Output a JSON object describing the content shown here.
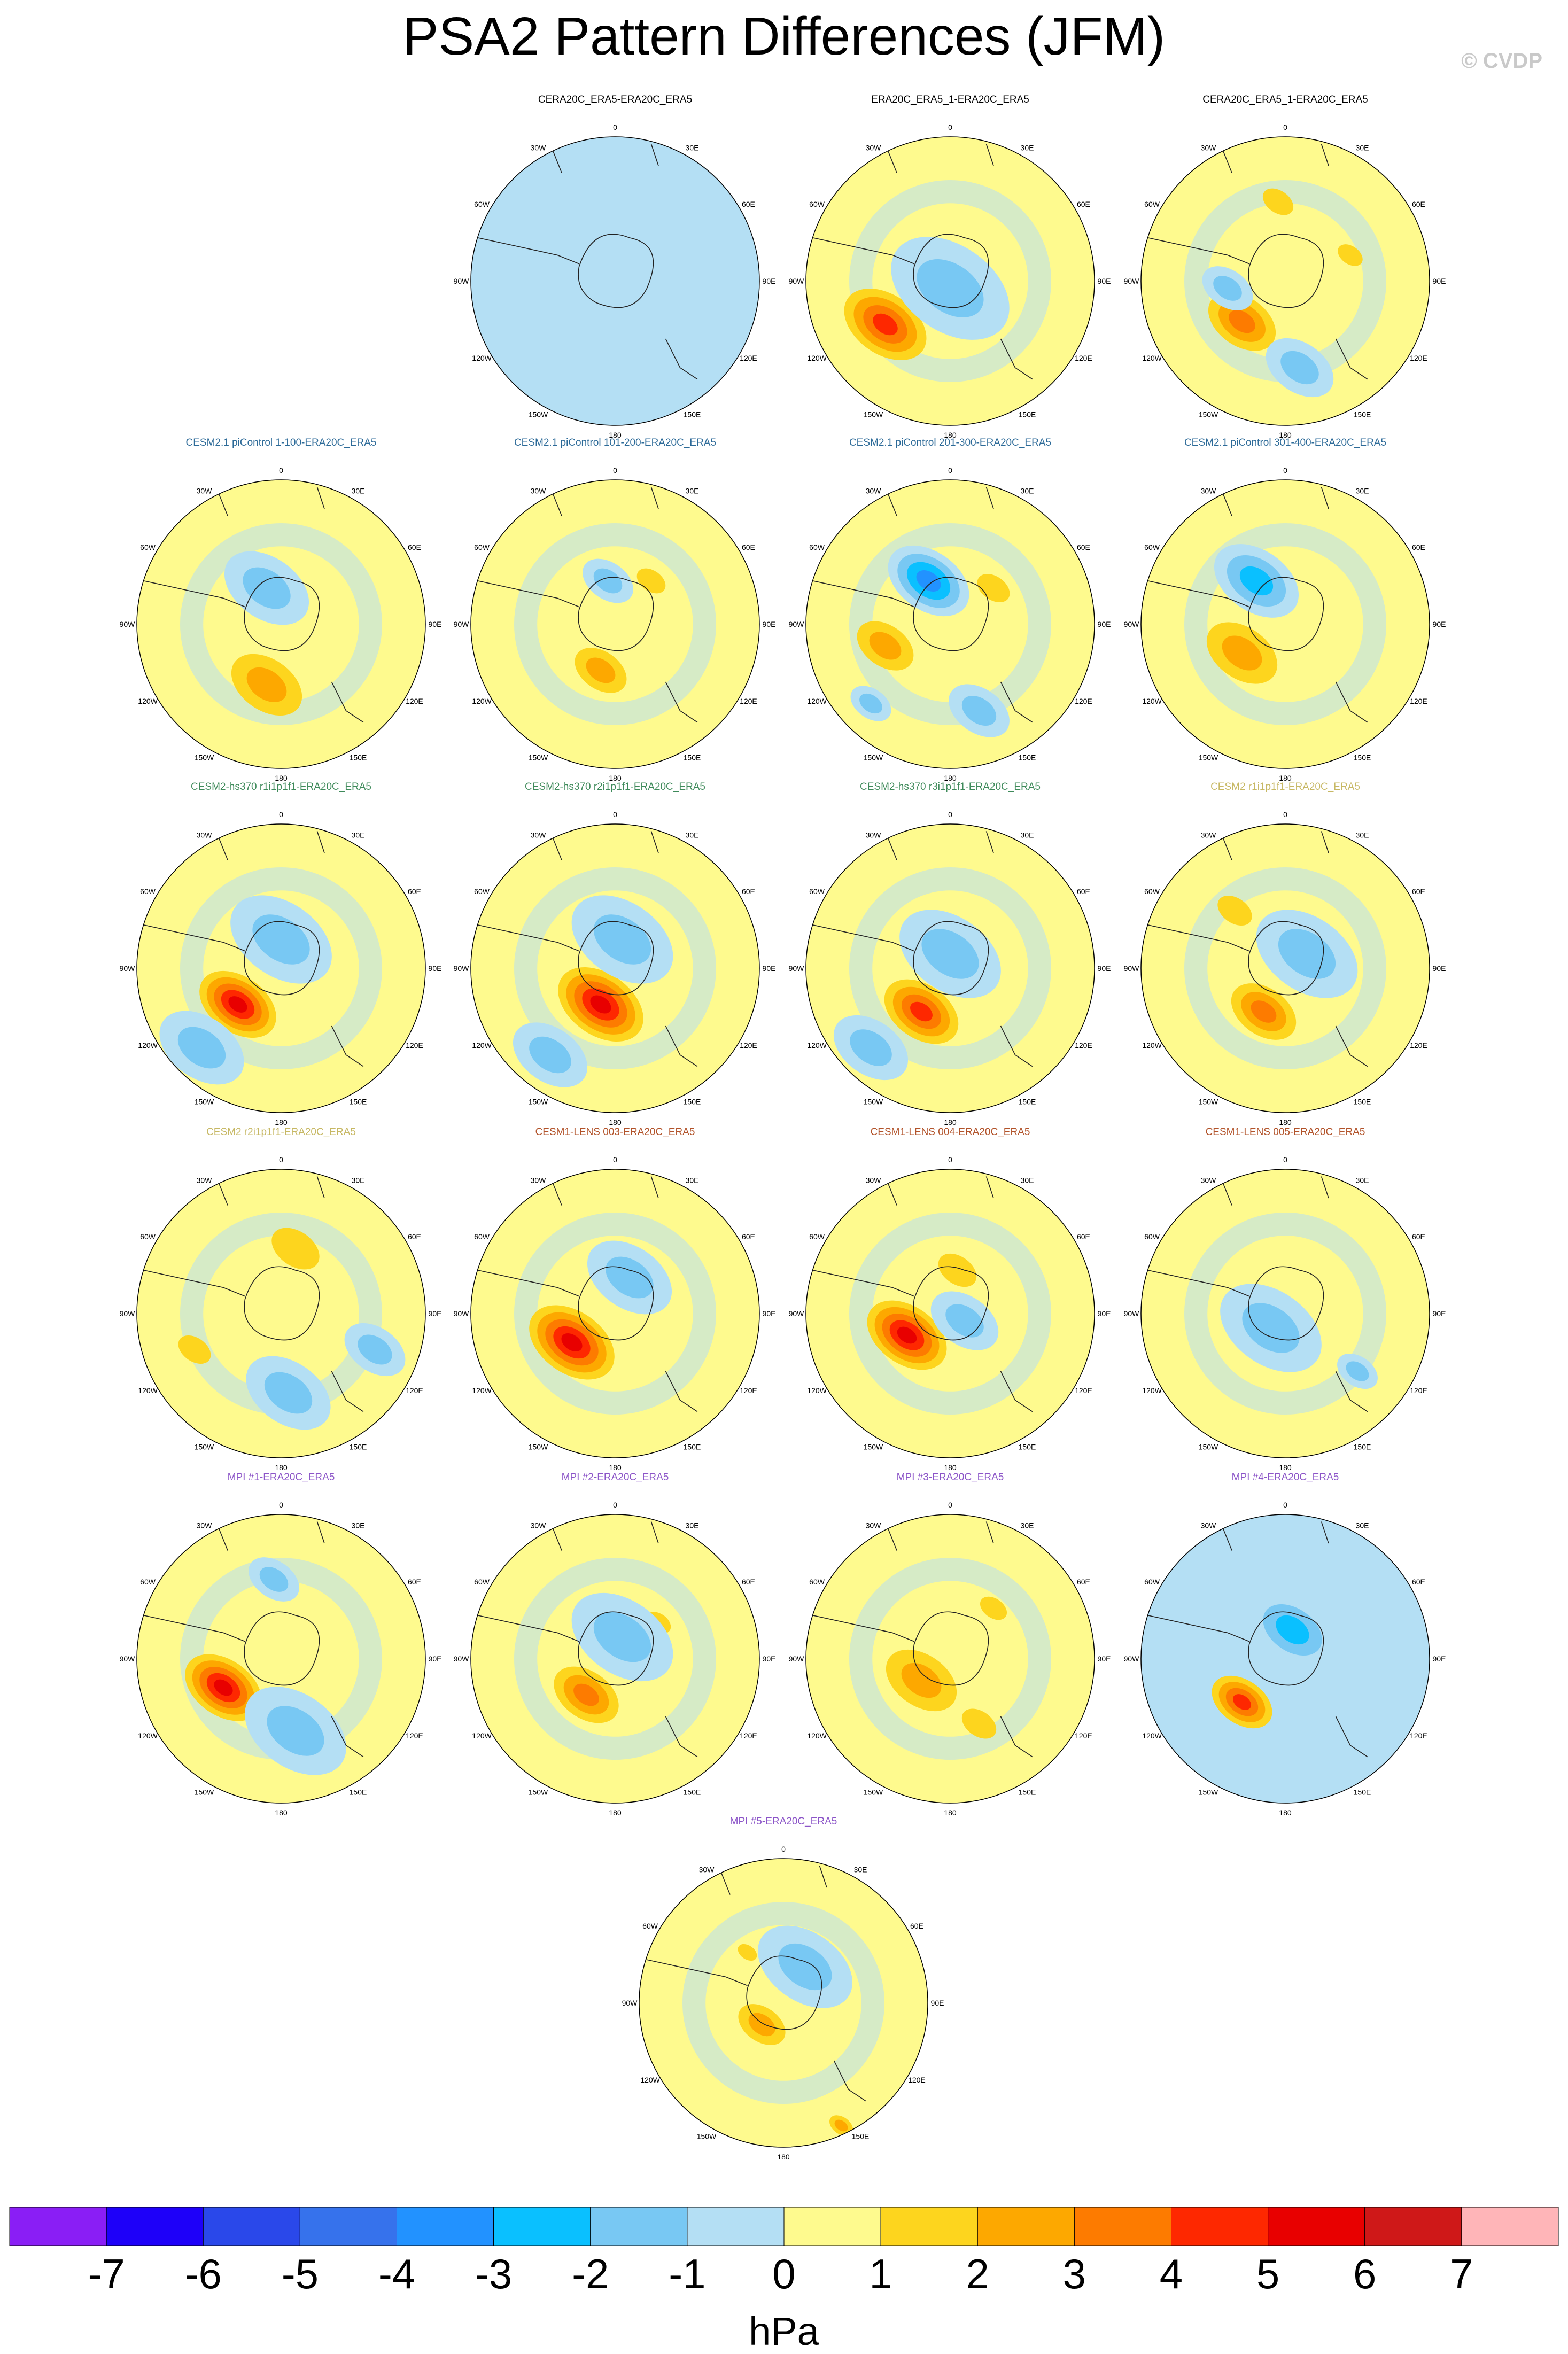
{
  "title": "PSA2 Pattern Differences (JFM)",
  "watermark": "© CVDP",
  "colors": {
    "levels": [
      "#8a1ef5",
      "#1e00f9",
      "#2a48ea",
      "#3672ec",
      "#2292ff",
      "#0ac0ff",
      "#78c8f3",
      "#b4dff4",
      "#fefa8e",
      "#fdd51e",
      "#fda800",
      "#fd7b00",
      "#fe2800",
      "#e80000",
      "#cf1818",
      "#ffb5b8"
    ],
    "coast": "#222222",
    "grid_text": "#000000"
  },
  "map_labels": {
    "top": "0",
    "top_left": "30W",
    "top_right": "30E",
    "upper_left": "60W",
    "upper_right": "60E",
    "left": "90W",
    "right": "90E",
    "lower_left": "120W",
    "lower_right": "120E",
    "bottom_left": "150W",
    "bottom_right": "150E",
    "bottom": "180"
  },
  "chart_data": {
    "type": "heatmap",
    "title": "PSA2 Pattern Differences (JFM)",
    "units": "hPa",
    "colorbar_ticks": [
      "-7",
      "-6",
      "-5",
      "-4",
      "-3",
      "-2",
      "-1",
      "0",
      "1",
      "2",
      "3",
      "4",
      "5",
      "6",
      "7"
    ],
    "levels": [
      -7,
      -6,
      -5,
      -4,
      -3,
      -2,
      -1,
      0,
      1,
      2,
      3,
      4,
      5,
      6,
      7
    ],
    "panels": [
      {
        "name": "CERA20C_ERA5-ERA20C_ERA5",
        "title_color": "#000000",
        "base": -1,
        "anomalies": []
      },
      {
        "name": "ERA20C_ERA5_1-ERA20C_ERA5",
        "title_color": "#000000",
        "base": 0,
        "anomalies": [
          {
            "x": -0.45,
            "y": 0.3,
            "value": 4,
            "r": 0.3
          },
          {
            "x": 0,
            "y": 0.05,
            "value": -1,
            "r": 0.35
          },
          {
            "x": 0.4,
            "y": -0.05,
            "value": 0,
            "r": 0.1
          }
        ]
      },
      {
        "name": "CERA20C_ERA5_1-ERA20C_ERA5",
        "title_color": "#000000",
        "base": 0,
        "anomalies": [
          {
            "x": -0.3,
            "y": 0.28,
            "value": 3,
            "r": 0.26
          },
          {
            "x": -0.05,
            "y": -0.55,
            "value": 1,
            "r": 0.16
          },
          {
            "x": 0.45,
            "y": -0.18,
            "value": 1,
            "r": 0.13
          },
          {
            "x": 0.1,
            "y": 0.6,
            "value": -1,
            "r": 0.2
          },
          {
            "x": -0.4,
            "y": 0.05,
            "value": -1,
            "r": 0.15
          }
        ]
      },
      {
        "name": "CESM2.1 piControl 1-100-ERA20C_ERA5",
        "title_color": "#2c6a98",
        "base": 0,
        "anomalies": [
          {
            "x": -0.1,
            "y": 0.42,
            "value": 2,
            "r": 0.3
          },
          {
            "x": -0.1,
            "y": -0.25,
            "value": -1,
            "r": 0.25
          }
        ]
      },
      {
        "name": "CESM2.1 piControl 101-200-ERA20C_ERA5",
        "title_color": "#2c6a98",
        "base": 0,
        "anomalies": [
          {
            "x": -0.1,
            "y": 0.32,
            "value": 2,
            "r": 0.22
          },
          {
            "x": 0.25,
            "y": -0.3,
            "value": 1,
            "r": 0.15
          },
          {
            "x": -0.05,
            "y": -0.3,
            "value": -1,
            "r": 0.15
          }
        ]
      },
      {
        "name": "CESM2.1 piControl 201-300-ERA20C_ERA5",
        "title_color": "#2c6a98",
        "base": 0,
        "anomalies": [
          {
            "x": -0.45,
            "y": 0.15,
            "value": 2,
            "r": 0.24
          },
          {
            "x": -0.15,
            "y": -0.3,
            "value": -3,
            "r": 0.24
          },
          {
            "x": 0.3,
            "y": -0.25,
            "value": 1,
            "r": 0.17
          },
          {
            "x": 0.2,
            "y": 0.6,
            "value": -1,
            "r": 0.18
          },
          {
            "x": -0.55,
            "y": 0.55,
            "value": -1,
            "r": 0.12
          }
        ]
      },
      {
        "name": "CESM2.1 piControl 301-400-ERA20C_ERA5",
        "title_color": "#2c6a98",
        "base": 0,
        "anomalies": [
          {
            "x": -0.3,
            "y": 0.2,
            "value": 2,
            "r": 0.3
          },
          {
            "x": -0.2,
            "y": -0.3,
            "value": -2,
            "r": 0.25
          }
        ]
      },
      {
        "name": "CESM2-hs370 r1i1p1f1-ERA20C_ERA5",
        "title_color": "#3e8a5a",
        "base": 0,
        "anomalies": [
          {
            "x": -0.3,
            "y": 0.25,
            "value": 5,
            "r": 0.27
          },
          {
            "x": -0.55,
            "y": 0.55,
            "value": -1,
            "r": 0.25
          },
          {
            "x": 0,
            "y": -0.2,
            "value": -1,
            "r": 0.3
          }
        ]
      },
      {
        "name": "CESM2-hs370 r2i1p1f1-ERA20C_ERA5",
        "title_color": "#3e8a5a",
        "base": 0,
        "anomalies": [
          {
            "x": -0.1,
            "y": 0.25,
            "value": 5,
            "r": 0.3
          },
          {
            "x": -0.45,
            "y": 0.6,
            "value": -1,
            "r": 0.22
          },
          {
            "x": 0.05,
            "y": -0.2,
            "value": -1,
            "r": 0.3
          }
        ]
      },
      {
        "name": "CESM2-hs370 r3i1p1f1-ERA20C_ERA5",
        "title_color": "#3e8a5a",
        "base": 0,
        "anomalies": [
          {
            "x": -0.2,
            "y": 0.3,
            "value": 4,
            "r": 0.27
          },
          {
            "x": -0.55,
            "y": 0.55,
            "value": -1,
            "r": 0.22
          },
          {
            "x": 0,
            "y": -0.1,
            "value": -1,
            "r": 0.3
          }
        ]
      },
      {
        "name": "CESM2 r1i1p1f1-ERA20C_ERA5",
        "title_color": "#c7b864",
        "base": 0,
        "anomalies": [
          {
            "x": -0.15,
            "y": 0.3,
            "value": 3,
            "r": 0.25
          },
          {
            "x": -0.35,
            "y": -0.4,
            "value": 1,
            "r": 0.18
          },
          {
            "x": 0.15,
            "y": -0.1,
            "value": -1,
            "r": 0.3
          }
        ]
      },
      {
        "name": "CESM2 r2i1p1f1-ERA20C_ERA5",
        "title_color": "#c7b864",
        "base": 0,
        "anomalies": [
          {
            "x": 0.1,
            "y": -0.45,
            "value": 1,
            "r": 0.25
          },
          {
            "x": -0.6,
            "y": 0.25,
            "value": 1,
            "r": 0.17
          },
          {
            "x": 0.65,
            "y": 0.25,
            "value": -1,
            "r": 0.18
          },
          {
            "x": 0.05,
            "y": 0.55,
            "value": -1,
            "r": 0.25
          }
        ]
      },
      {
        "name": "CESM1-LENS 003-ERA20C_ERA5",
        "title_color": "#b2532a",
        "base": 0,
        "anomalies": [
          {
            "x": -0.3,
            "y": 0.2,
            "value": 5,
            "r": 0.3
          },
          {
            "x": 0.1,
            "y": -0.25,
            "value": -1,
            "r": 0.25
          }
        ]
      },
      {
        "name": "CESM1-LENS 004-ERA20C_ERA5",
        "title_color": "#b2532a",
        "base": 0,
        "anomalies": [
          {
            "x": -0.3,
            "y": 0.15,
            "value": 5,
            "r": 0.28
          },
          {
            "x": 0.05,
            "y": -0.3,
            "value": 1,
            "r": 0.2
          },
          {
            "x": 0.1,
            "y": 0.05,
            "value": -1,
            "r": 0.2
          }
        ]
      },
      {
        "name": "CESM1-LENS 005-ERA20C_ERA5",
        "title_color": "#b2532a",
        "base": 0,
        "anomalies": [
          {
            "x": -0.1,
            "y": 0.1,
            "value": -1,
            "r": 0.3
          },
          {
            "x": 0.5,
            "y": 0.4,
            "value": -1,
            "r": 0.12
          }
        ]
      },
      {
        "name": "MPI #1-ERA20C_ERA5",
        "title_color": "#8c55c8",
        "base": 0,
        "anomalies": [
          {
            "x": -0.4,
            "y": 0.2,
            "value": 5,
            "r": 0.27
          },
          {
            "x": 0.1,
            "y": 0.5,
            "value": -1,
            "r": 0.3
          },
          {
            "x": -0.05,
            "y": -0.55,
            "value": -1,
            "r": 0.15
          }
        ]
      },
      {
        "name": "MPI #2-ERA20C_ERA5",
        "title_color": "#8c55c8",
        "base": 0,
        "anomalies": [
          {
            "x": -0.2,
            "y": 0.25,
            "value": 3,
            "r": 0.25
          },
          {
            "x": 0.3,
            "y": -0.25,
            "value": 1,
            "r": 0.13
          },
          {
            "x": 0.05,
            "y": -0.15,
            "value": -1,
            "r": 0.3
          }
        ]
      },
      {
        "name": "MPI #3-ERA20C_ERA5",
        "title_color": "#8c55c8",
        "base": 0,
        "anomalies": [
          {
            "x": -0.2,
            "y": 0.15,
            "value": 2,
            "r": 0.3
          },
          {
            "x": 0.3,
            "y": -0.35,
            "value": 1,
            "r": 0.14
          },
          {
            "x": 0.2,
            "y": 0.45,
            "value": 1,
            "r": 0.18
          }
        ]
      },
      {
        "name": "MPI #4-ERA20C_ERA5",
        "title_color": "#8c55c8",
        "base": -1,
        "anomalies": [
          {
            "x": -0.3,
            "y": 0.3,
            "value": 4,
            "r": 0.22
          },
          {
            "x": 0.05,
            "y": -0.2,
            "value": -2,
            "r": 0.25
          },
          {
            "x": 0.3,
            "y": 0.45,
            "value": 0,
            "r": 0.25
          },
          {
            "x": -0.4,
            "y": -0.55,
            "value": 0,
            "r": 0.25
          }
        ]
      },
      {
        "name": "MPI #5-ERA20C_ERA5",
        "title_color": "#8c55c8",
        "base": 0,
        "anomalies": [
          {
            "x": -0.15,
            "y": 0.15,
            "value": 2,
            "r": 0.2
          },
          {
            "x": -0.25,
            "y": -0.35,
            "value": 1,
            "r": 0.1
          },
          {
            "x": 0.4,
            "y": 0.85,
            "value": 2,
            "r": 0.1
          },
          {
            "x": 0.15,
            "y": -0.25,
            "value": -1,
            "r": 0.28
          }
        ]
      }
    ]
  }
}
